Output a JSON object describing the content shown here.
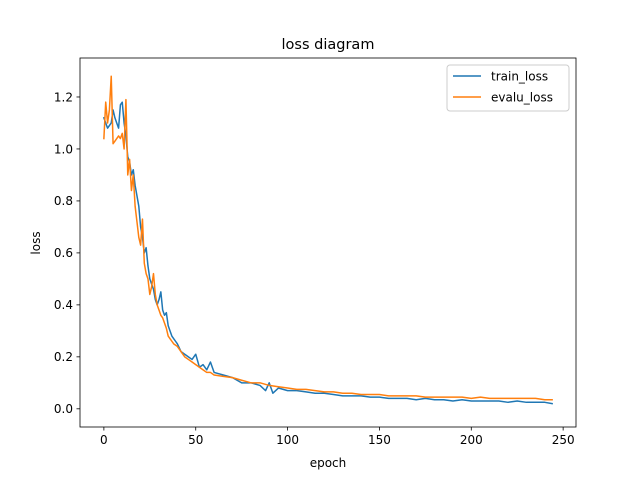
{
  "chart_data": {
    "type": "line",
    "title": "loss diagram",
    "xlabel": "epoch",
    "ylabel": "loss",
    "xlim": [
      -13,
      257
    ],
    "ylim": [
      -0.07,
      1.35
    ],
    "xticks": [
      0,
      50,
      100,
      150,
      200,
      250
    ],
    "yticks": [
      0.0,
      0.2,
      0.4,
      0.6,
      0.8,
      1.0,
      1.2
    ],
    "xtick_labels": [
      "0",
      "50",
      "100",
      "150",
      "200",
      "250"
    ],
    "ytick_labels": [
      "0.0",
      "0.2",
      "0.4",
      "0.6",
      "0.8",
      "1.0",
      "1.2"
    ],
    "grid": false,
    "legend_position": "top-right",
    "series": [
      {
        "name": "train_loss",
        "color": "#1f77b4",
        "x": [
          0,
          1,
          2,
          3,
          4,
          5,
          6,
          7,
          8,
          9,
          10,
          11,
          12,
          13,
          14,
          15,
          16,
          17,
          18,
          19,
          20,
          21,
          22,
          23,
          24,
          25,
          26,
          27,
          28,
          29,
          30,
          31,
          32,
          33,
          34,
          35,
          36,
          37,
          38,
          39,
          40,
          42,
          44,
          46,
          48,
          50,
          52,
          54,
          56,
          58,
          60,
          65,
          70,
          75,
          80,
          85,
          88,
          90,
          92,
          95,
          100,
          105,
          110,
          115,
          120,
          125,
          130,
          135,
          140,
          145,
          150,
          155,
          160,
          165,
          170,
          175,
          180,
          185,
          190,
          195,
          200,
          205,
          210,
          215,
          220,
          225,
          230,
          235,
          240,
          244
        ],
        "y": [
          1.12,
          1.1,
          1.08,
          1.09,
          1.1,
          1.15,
          1.12,
          1.1,
          1.08,
          1.17,
          1.18,
          1.1,
          1.05,
          0.97,
          0.95,
          0.9,
          0.92,
          0.86,
          0.82,
          0.78,
          0.7,
          0.66,
          0.6,
          0.62,
          0.55,
          0.5,
          0.48,
          0.46,
          0.42,
          0.4,
          0.42,
          0.45,
          0.38,
          0.36,
          0.37,
          0.32,
          0.3,
          0.28,
          0.27,
          0.26,
          0.25,
          0.22,
          0.21,
          0.2,
          0.19,
          0.21,
          0.16,
          0.17,
          0.15,
          0.18,
          0.14,
          0.13,
          0.12,
          0.1,
          0.1,
          0.09,
          0.07,
          0.1,
          0.06,
          0.08,
          0.07,
          0.07,
          0.065,
          0.06,
          0.06,
          0.055,
          0.05,
          0.05,
          0.05,
          0.045,
          0.045,
          0.04,
          0.04,
          0.04,
          0.035,
          0.04,
          0.035,
          0.035,
          0.03,
          0.035,
          0.03,
          0.03,
          0.03,
          0.03,
          0.025,
          0.03,
          0.025,
          0.025,
          0.025,
          0.02
        ]
      },
      {
        "name": "evalu_loss",
        "color": "#ff7f0e",
        "x": [
          0,
          1,
          2,
          3,
          4,
          5,
          6,
          7,
          8,
          9,
          10,
          11,
          12,
          13,
          14,
          15,
          16,
          17,
          18,
          19,
          20,
          21,
          22,
          23,
          24,
          25,
          26,
          27,
          28,
          29,
          30,
          31,
          32,
          33,
          34,
          35,
          36,
          37,
          38,
          39,
          40,
          42,
          44,
          46,
          48,
          50,
          52,
          54,
          56,
          58,
          60,
          65,
          70,
          75,
          80,
          85,
          90,
          95,
          100,
          105,
          110,
          115,
          120,
          125,
          130,
          135,
          140,
          145,
          150,
          155,
          160,
          165,
          170,
          175,
          180,
          185,
          190,
          195,
          200,
          205,
          210,
          215,
          220,
          225,
          230,
          235,
          240,
          244
        ],
        "y": [
          1.04,
          1.18,
          1.1,
          1.15,
          1.28,
          1.02,
          1.03,
          1.04,
          1.05,
          1.04,
          1.06,
          1.0,
          1.19,
          0.9,
          0.96,
          0.84,
          0.9,
          0.78,
          0.72,
          0.66,
          0.63,
          0.73,
          0.56,
          0.52,
          0.5,
          0.44,
          0.47,
          0.52,
          0.44,
          0.4,
          0.38,
          0.36,
          0.35,
          0.33,
          0.31,
          0.28,
          0.27,
          0.26,
          0.25,
          0.245,
          0.24,
          0.22,
          0.2,
          0.19,
          0.18,
          0.17,
          0.16,
          0.15,
          0.14,
          0.14,
          0.13,
          0.125,
          0.12,
          0.11,
          0.1,
          0.1,
          0.09,
          0.085,
          0.08,
          0.075,
          0.075,
          0.07,
          0.065,
          0.065,
          0.06,
          0.06,
          0.055,
          0.055,
          0.055,
          0.05,
          0.05,
          0.05,
          0.05,
          0.045,
          0.045,
          0.045,
          0.045,
          0.045,
          0.04,
          0.045,
          0.04,
          0.04,
          0.04,
          0.04,
          0.04,
          0.04,
          0.035,
          0.035
        ]
      }
    ]
  }
}
